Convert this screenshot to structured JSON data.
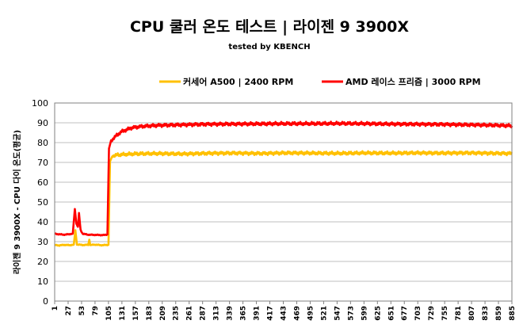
{
  "chart_data": {
    "type": "line",
    "title": "CPU 쿨러 온도 테스트 | 라이젠 9 3900X",
    "subtitle": "tested by KBENCH",
    "xlabel": "",
    "ylabel": "라이젠 9 3900X - CPU 다이 온도(평균)",
    "ylim": [
      0,
      100
    ],
    "yticks": [
      0,
      10,
      20,
      30,
      40,
      50,
      60,
      70,
      80,
      90,
      100
    ],
    "xlim": [
      1,
      885
    ],
    "xticks": [
      1,
      27,
      53,
      79,
      105,
      131,
      157,
      183,
      209,
      235,
      261,
      287,
      313,
      339,
      365,
      391,
      417,
      443,
      469,
      495,
      521,
      547,
      573,
      599,
      625,
      651,
      677,
      703,
      729,
      755,
      781,
      807,
      833,
      859,
      885
    ],
    "grid": "horizontal",
    "legend_position": "top-right",
    "series": [
      {
        "name": "커세어 A500 | 2400 RPM",
        "color": "#ffc000",
        "points": [
          [
            1,
            28.3
          ],
          [
            10,
            28.1
          ],
          [
            20,
            28.4
          ],
          [
            30,
            28.2
          ],
          [
            38,
            28.5
          ],
          [
            41,
            35.8
          ],
          [
            44,
            28.6
          ],
          [
            55,
            28.3
          ],
          [
            66,
            28.4
          ],
          [
            68,
            31.0
          ],
          [
            70,
            28.3
          ],
          [
            80,
            28.5
          ],
          [
            90,
            28.2
          ],
          [
            100,
            28.3
          ],
          [
            105,
            28.4
          ],
          [
            108,
            70.5
          ],
          [
            113,
            73.5
          ],
          [
            130,
            74.0
          ],
          [
            160,
            74.4
          ],
          [
            200,
            74.5
          ],
          [
            250,
            74.3
          ],
          [
            300,
            74.6
          ],
          [
            350,
            74.7
          ],
          [
            400,
            74.5
          ],
          [
            450,
            74.8
          ],
          [
            500,
            74.7
          ],
          [
            550,
            74.6
          ],
          [
            600,
            74.8
          ],
          [
            650,
            74.7
          ],
          [
            700,
            74.8
          ],
          [
            750,
            74.7
          ],
          [
            800,
            74.8
          ],
          [
            850,
            74.6
          ],
          [
            885,
            74.5
          ]
        ]
      },
      {
        "name": "AMD 레이스 프리즘 | 3000 RPM",
        "color": "#ff0000",
        "points": [
          [
            1,
            34.0
          ],
          [
            10,
            33.7
          ],
          [
            20,
            33.5
          ],
          [
            30,
            33.8
          ],
          [
            36,
            34.0
          ],
          [
            40,
            46.5
          ],
          [
            43,
            39.0
          ],
          [
            46,
            37.5
          ],
          [
            48,
            44.5
          ],
          [
            51,
            36.0
          ],
          [
            55,
            34.0
          ],
          [
            66,
            33.5
          ],
          [
            80,
            33.4
          ],
          [
            95,
            33.3
          ],
          [
            103,
            33.6
          ],
          [
            106,
            77.0
          ],
          [
            110,
            81.0
          ],
          [
            120,
            83.5
          ],
          [
            130,
            85.5
          ],
          [
            150,
            87.5
          ],
          [
            170,
            88.2
          ],
          [
            200,
            88.7
          ],
          [
            250,
            89.0
          ],
          [
            300,
            89.3
          ],
          [
            350,
            89.4
          ],
          [
            400,
            89.5
          ],
          [
            450,
            89.6
          ],
          [
            500,
            89.6
          ],
          [
            550,
            89.7
          ],
          [
            600,
            89.6
          ],
          [
            650,
            89.4
          ],
          [
            700,
            89.3
          ],
          [
            750,
            89.2
          ],
          [
            800,
            89.0
          ],
          [
            850,
            88.8
          ],
          [
            885,
            88.5
          ]
        ]
      }
    ]
  }
}
